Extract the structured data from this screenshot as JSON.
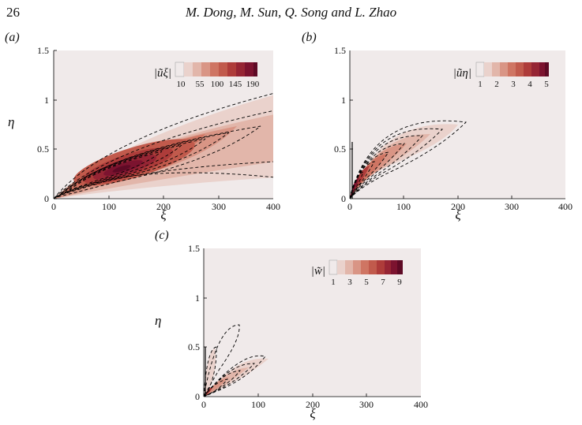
{
  "header": {
    "page_number": "26",
    "running_title": "M. Dong, M. Sun, Q. Song and L. Zhao"
  },
  "panels": [
    {
      "label": "(a)",
      "x_ticks": [
        "0",
        "100",
        "200",
        "300",
        "400"
      ],
      "y_ticks": [
        "0",
        "0.5",
        "1",
        "1.5"
      ],
      "x_label": "ξ",
      "y_label": "η",
      "colorbar_title": "|ũξ|",
      "colorbar_ticks": [
        "10",
        "55",
        "100",
        "145",
        "190"
      ]
    },
    {
      "label": "(b)",
      "x_ticks": [
        "0",
        "100",
        "200",
        "300",
        "400"
      ],
      "y_ticks": [
        "0",
        "0.5",
        "1",
        "1.5"
      ],
      "x_label": "ξ",
      "y_label": "",
      "colorbar_title": "|ũη|",
      "colorbar_ticks": [
        "1",
        "2",
        "3",
        "4",
        "5"
      ]
    },
    {
      "label": "(c)",
      "x_ticks": [
        "0",
        "100",
        "200",
        "300",
        "400"
      ],
      "y_ticks": [
        "0",
        "0.5",
        "1",
        "1.5"
      ],
      "x_label": "ξ",
      "y_label": "η",
      "colorbar_title": "|w̃|",
      "colorbar_ticks": [
        "1",
        "3",
        "5",
        "7",
        "9"
      ]
    }
  ],
  "chart_data": [
    {
      "type": "heatmap",
      "panel": "(a)",
      "quantity": "|ũξ|",
      "xlim": [
        0,
        400
      ],
      "ylim": [
        0,
        1.5
      ],
      "colorbar_range": [
        10,
        190
      ],
      "colorbar_ticks": [
        10,
        55,
        100,
        145,
        190
      ],
      "peak": {
        "xi": 120,
        "eta": 0.33
      }
    },
    {
      "type": "heatmap",
      "panel": "(b)",
      "quantity": "|ũη|",
      "xlim": [
        0,
        400
      ],
      "ylim": [
        0,
        1.5
      ],
      "colorbar_range": [
        1,
        5
      ],
      "colorbar_ticks": [
        1,
        2,
        3,
        4,
        5
      ],
      "peak": {
        "xi": 8,
        "eta": 0.15
      }
    },
    {
      "type": "heatmap",
      "panel": "(c)",
      "quantity": "|w̃|",
      "xlim": [
        0,
        400
      ],
      "ylim": [
        0,
        1.5
      ],
      "colorbar_range": [
        1,
        9
      ],
      "colorbar_ticks": [
        1,
        3,
        5,
        7,
        9
      ],
      "peak": {
        "xi": 3,
        "eta": 0.05
      }
    }
  ],
  "colors": {
    "background": "#f0eaea",
    "colormap": [
      "#f0eaea",
      "#ead2cc",
      "#e2b6aa",
      "#d99585",
      "#cf7563",
      "#c15a4c",
      "#ae3c3a",
      "#962534",
      "#7c132f",
      "#5e0a25"
    ]
  }
}
